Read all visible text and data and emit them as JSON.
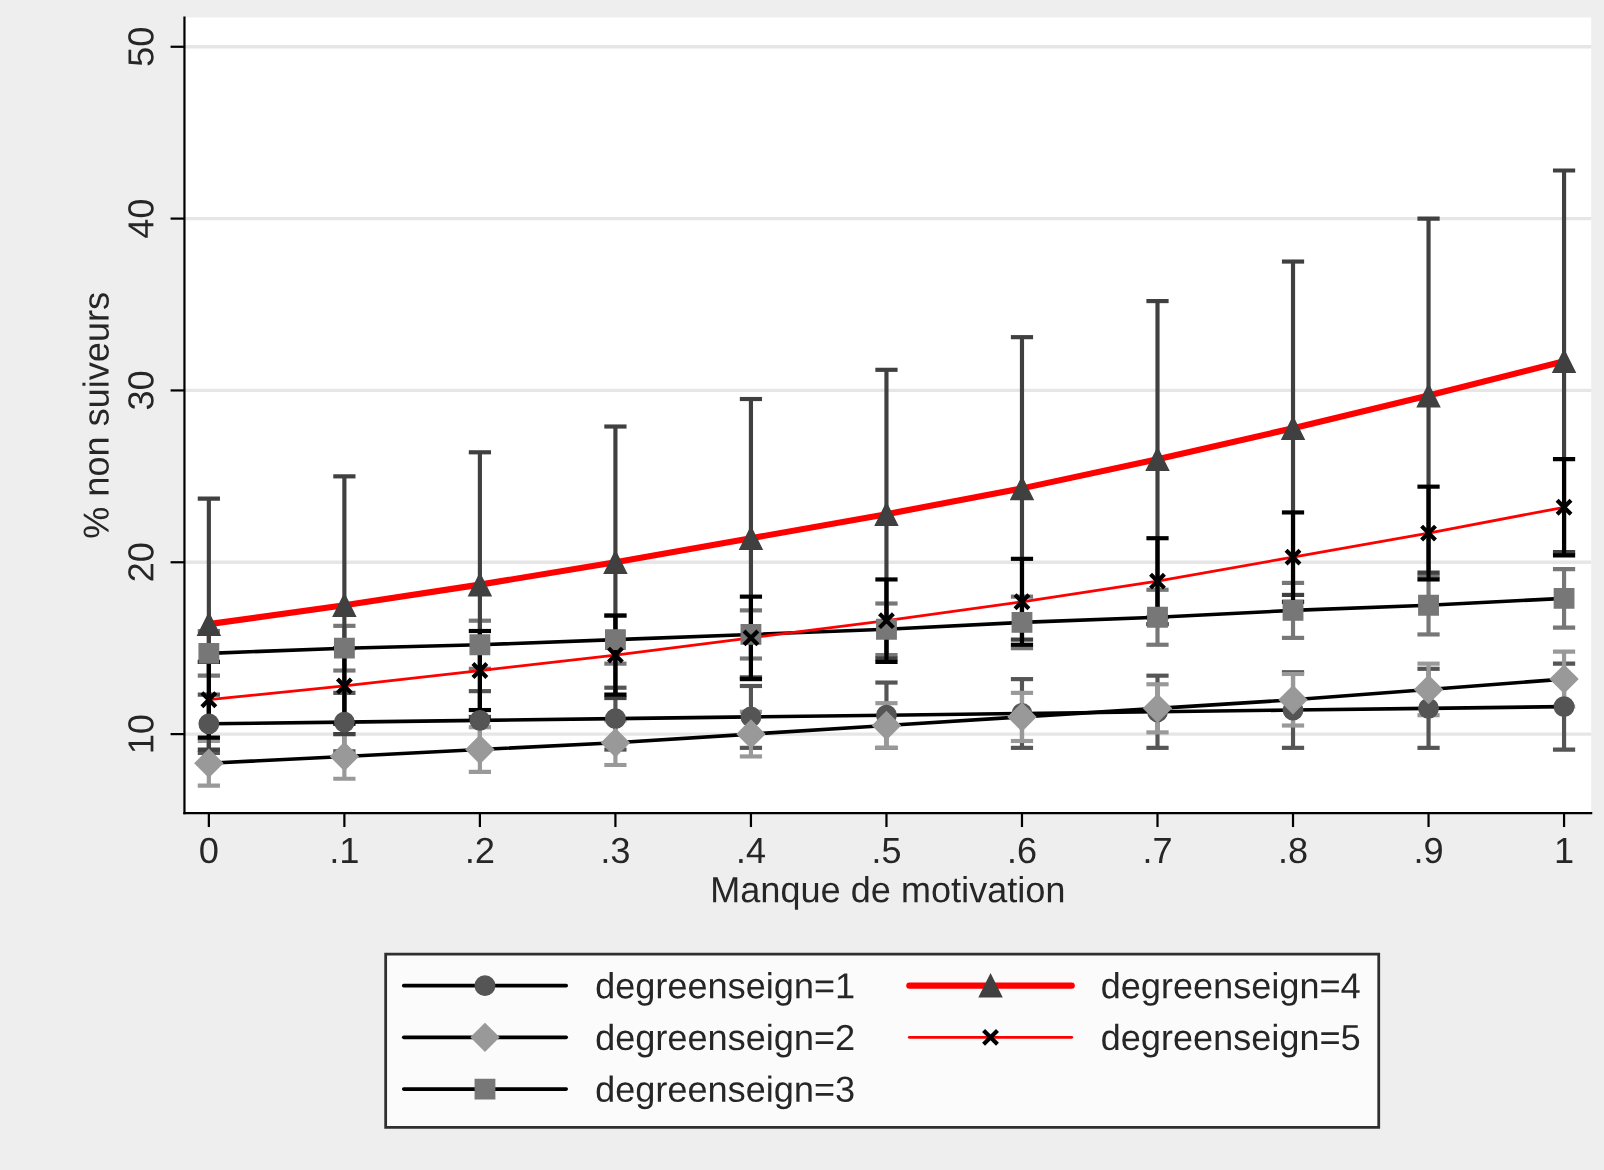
{
  "chart_data": {
    "type": "line",
    "xlabel": "Manque de motivation",
    "ylabel": "% non suiveurs",
    "x": [
      0,
      0.1,
      0.2,
      0.3,
      0.4,
      0.5,
      0.6,
      0.7,
      0.8,
      0.9,
      1
    ],
    "xlim": [
      -0.018,
      1.02
    ],
    "ylim": [
      5.4,
      51.7
    ],
    "xticks": [
      {
        "value": 0,
        "label": "0"
      },
      {
        "value": 0.1,
        "label": ".1"
      },
      {
        "value": 0.2,
        "label": ".2"
      },
      {
        "value": 0.3,
        "label": ".3"
      },
      {
        "value": 0.4,
        "label": ".4"
      },
      {
        "value": 0.5,
        "label": ".5"
      },
      {
        "value": 0.6,
        "label": ".6"
      },
      {
        "value": 0.7,
        "label": ".7"
      },
      {
        "value": 0.8,
        "label": ".8"
      },
      {
        "value": 0.9,
        "label": ".9"
      },
      {
        "value": 1,
        "label": "1"
      }
    ],
    "yticks": [
      10,
      20,
      30,
      40,
      50
    ],
    "grid": "y",
    "legend": "bottom",
    "series": [
      {
        "name": "degreenseign=1",
        "color": "#000000",
        "marker": "circle",
        "values": [
          10.6,
          10.7,
          10.8,
          10.9,
          11.0,
          11.1,
          11.2,
          11.3,
          11.4,
          11.5,
          11.6
        ],
        "errors": [
          1.7,
          1.7,
          1.7,
          1.8,
          1.8,
          1.9,
          2.0,
          2.1,
          2.2,
          2.3,
          2.5
        ]
      },
      {
        "name": "degreenseign=2",
        "color": "#000000",
        "marker": "diamond",
        "values": [
          8.3,
          8.7,
          9.1,
          9.5,
          10.0,
          10.5,
          11.0,
          11.5,
          12.0,
          12.6,
          13.2
        ],
        "errors": [
          1.3,
          1.3,
          1.3,
          1.3,
          1.3,
          1.3,
          1.4,
          1.4,
          1.5,
          1.5,
          1.6
        ]
      },
      {
        "name": "degreenseign=3",
        "color": "#000000",
        "marker": "square",
        "values": [
          14.7,
          15.0,
          15.2,
          15.5,
          15.8,
          16.1,
          16.5,
          16.8,
          17.2,
          17.5,
          17.9
        ],
        "errors": [
          1.3,
          1.3,
          1.4,
          1.4,
          1.4,
          1.5,
          1.5,
          1.6,
          1.6,
          1.7,
          1.7
        ]
      },
      {
        "name": "degreenseign=4",
        "color": "#ff0000",
        "marker": "triangle",
        "values": [
          16.4,
          17.5,
          18.7,
          20.0,
          21.4,
          22.8,
          24.3,
          26.0,
          27.8,
          29.7,
          31.7
        ],
        "errors": [
          7.3,
          7.5,
          7.7,
          7.9,
          8.1,
          8.4,
          8.8,
          9.2,
          9.7,
          10.3,
          11.1
        ]
      },
      {
        "name": "degreenseign=5",
        "color": "#ff0000",
        "marker": "cross",
        "values": [
          12.0,
          12.8,
          13.7,
          14.6,
          15.6,
          16.6,
          17.7,
          18.9,
          20.3,
          21.7,
          23.2
        ],
        "errors": [
          2.2,
          2.2,
          2.3,
          2.3,
          2.4,
          2.4,
          2.5,
          2.5,
          2.6,
          2.7,
          2.8
        ]
      }
    ]
  }
}
